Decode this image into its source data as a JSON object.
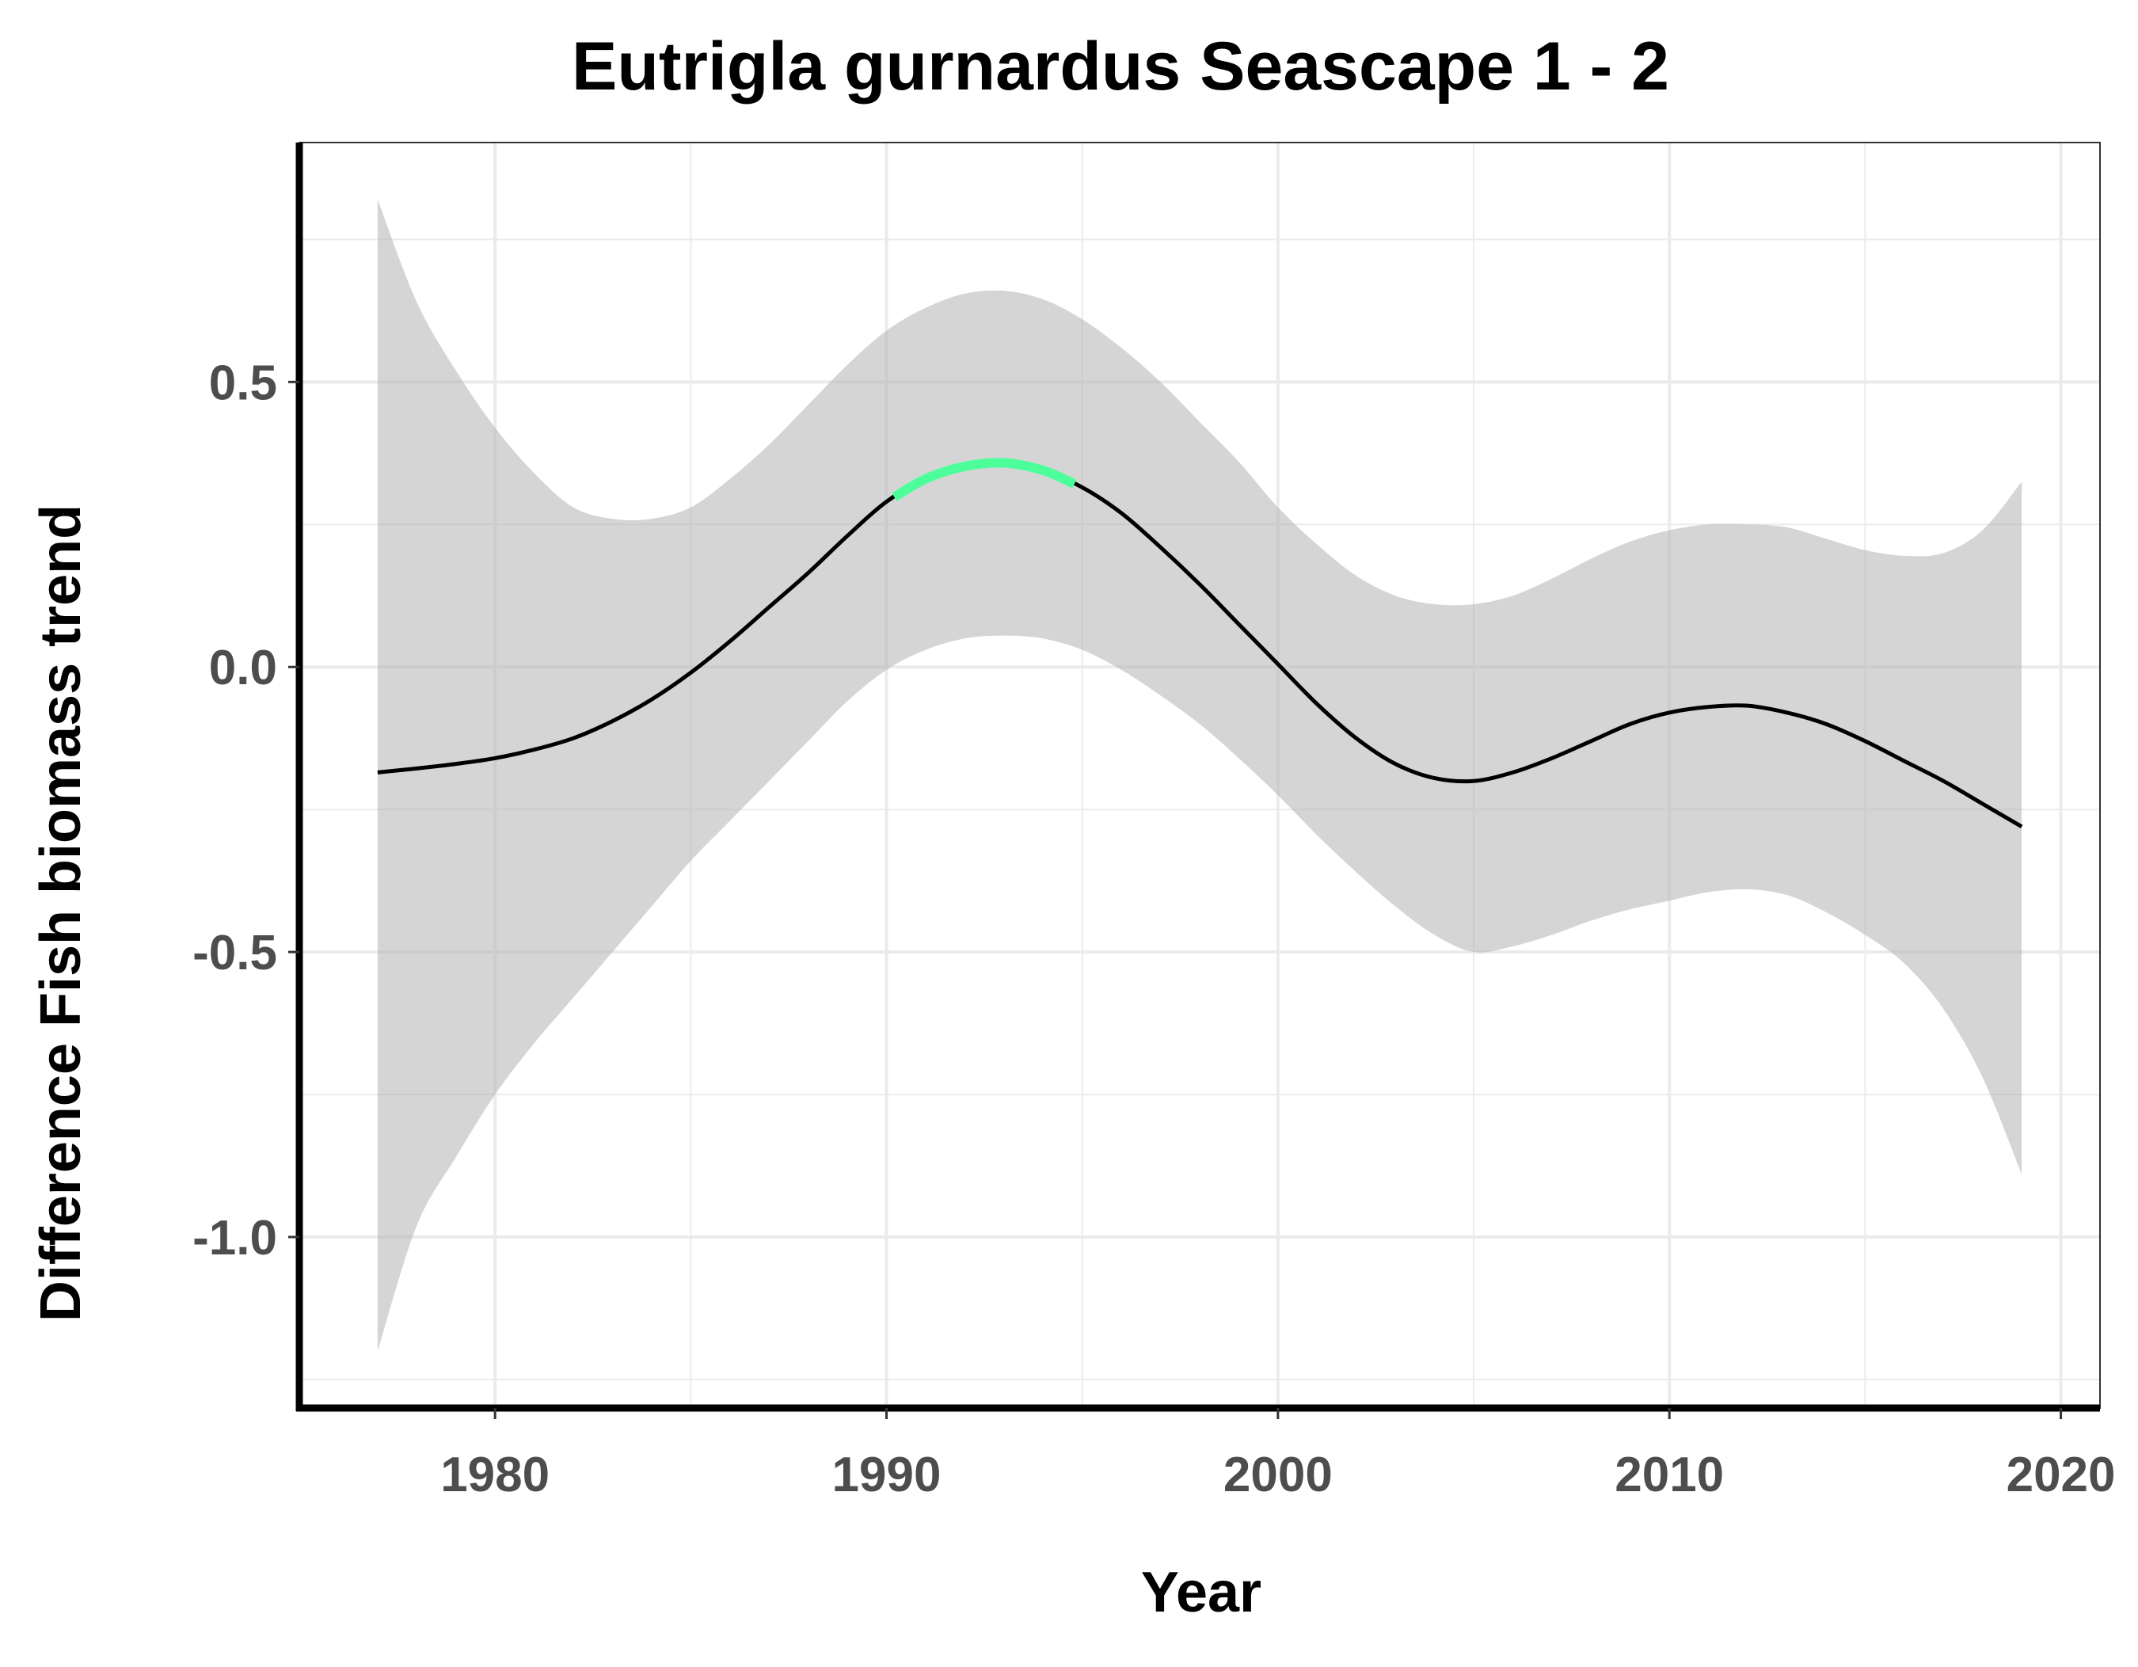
{
  "chart_data": {
    "type": "line",
    "title": "Eutrigla gurnardus Seascape 1 - 2",
    "xlabel": "Year",
    "ylabel": "Difference Fish biomass trend",
    "xlim": [
      1975,
      2021
    ],
    "ylim": [
      -1.3,
      0.92
    ],
    "x_ticks": [
      1980,
      1990,
      2000,
      2010,
      2020
    ],
    "x_tick_labels": [
      "1980",
      "1990",
      "2000",
      "2010",
      "2020"
    ],
    "y_ticks": [
      0.5,
      0.0,
      -0.5,
      -1.0
    ],
    "y_tick_labels": [
      "0.5",
      "0.0",
      "-0.5",
      "-1.0"
    ],
    "grid": true,
    "colors": {
      "line": "#000000",
      "highlight": "#4dff9a",
      "ribbon": "#b3b3b3",
      "grid": "#ebebeb",
      "tick_text": "#4d4d4d"
    },
    "series": [
      {
        "x": [
          1977,
          1978,
          1979,
          1980,
          1981,
          1982,
          1983,
          1984,
          1985,
          1986,
          1987,
          1988,
          1989,
          1990,
          1991,
          1992,
          1993,
          1994,
          1995,
          1996,
          1997,
          1998,
          1999,
          2000,
          2001,
          2002,
          2003,
          2004,
          2005,
          2006,
          2007,
          2008,
          2009,
          2010,
          2011,
          2012,
          2013,
          2014,
          2015,
          2016,
          2017,
          2018,
          2019
        ],
        "y": [
          -0.185,
          -0.178,
          -0.17,
          -0.16,
          -0.145,
          -0.125,
          -0.095,
          -0.057,
          -0.01,
          0.045,
          0.105,
          0.165,
          0.23,
          0.29,
          0.33,
          0.352,
          0.358,
          0.345,
          0.315,
          0.27,
          0.21,
          0.145,
          0.075,
          0.005,
          -0.065,
          -0.125,
          -0.17,
          -0.195,
          -0.2,
          -0.185,
          -0.16,
          -0.13,
          -0.1,
          -0.08,
          -0.07,
          -0.068,
          -0.08,
          -0.1,
          -0.13,
          -0.165,
          -0.2,
          -0.24,
          -0.28
        ],
        "lower": [
          -1.2,
          -0.98,
          -0.86,
          -0.75,
          -0.66,
          -0.58,
          -0.5,
          -0.42,
          -0.34,
          -0.27,
          -0.2,
          -0.13,
          -0.06,
          -0.005,
          0.03,
          0.05,
          0.055,
          0.05,
          0.03,
          -0.005,
          -0.05,
          -0.1,
          -0.16,
          -0.225,
          -0.295,
          -0.36,
          -0.42,
          -0.47,
          -0.5,
          -0.49,
          -0.47,
          -0.445,
          -0.425,
          -0.41,
          -0.395,
          -0.39,
          -0.4,
          -0.43,
          -0.47,
          -0.52,
          -0.6,
          -0.72,
          -0.89
        ],
        "upper": [
          0.82,
          0.64,
          0.52,
          0.42,
          0.34,
          0.28,
          0.26,
          0.26,
          0.28,
          0.33,
          0.39,
          0.46,
          0.53,
          0.59,
          0.63,
          0.655,
          0.66,
          0.645,
          0.61,
          0.56,
          0.5,
          0.43,
          0.36,
          0.28,
          0.215,
          0.16,
          0.125,
          0.11,
          0.11,
          0.125,
          0.155,
          0.19,
          0.22,
          0.24,
          0.25,
          0.25,
          0.245,
          0.225,
          0.205,
          0.195,
          0.2,
          0.24,
          0.325
        ]
      }
    ],
    "highlight_range": [
      1990.2,
      1994.8
    ]
  }
}
